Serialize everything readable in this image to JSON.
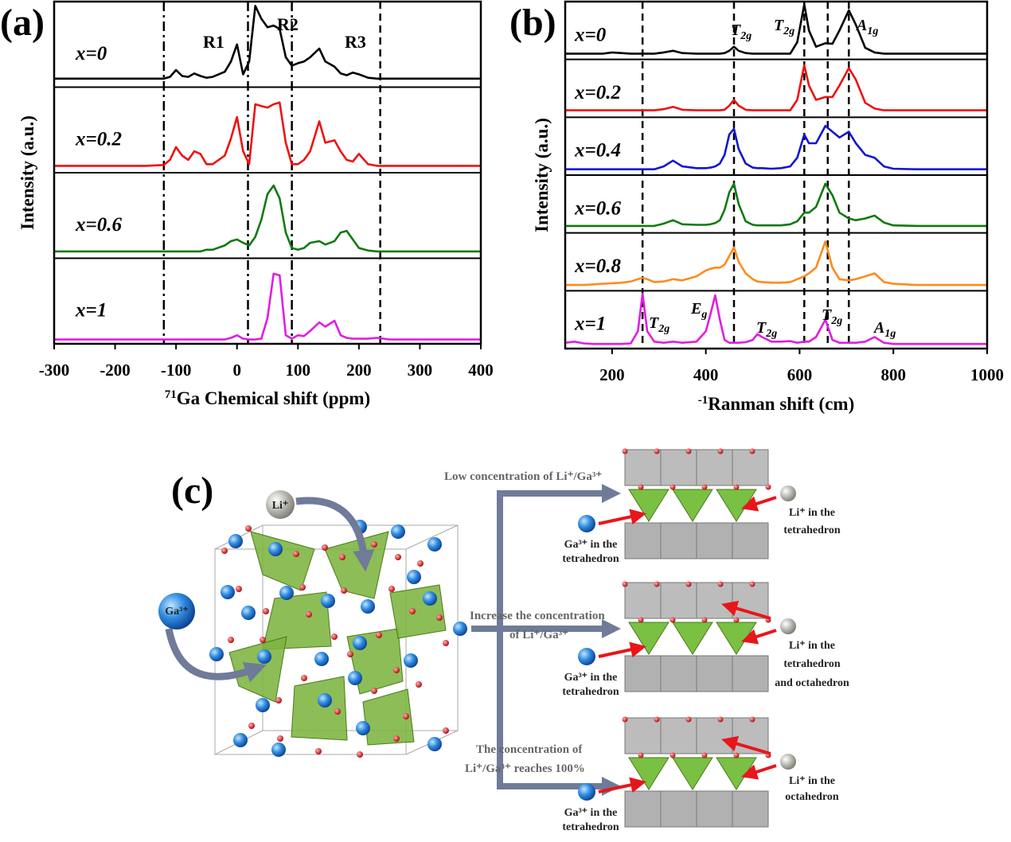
{
  "chart_data": [
    {
      "type": "line",
      "panel_label": "(a)",
      "ylabel": "Intensity (a.u.)",
      "xlabel": {
        "sup": "71",
        "text": "Ga Chemical shift (ppm)"
      },
      "xlim": [
        -300,
        400
      ],
      "xticks": [
        -300,
        -200,
        -100,
        0,
        100,
        200,
        300,
        400
      ],
      "ylim": [
        0,
        1
      ],
      "x": [
        -300,
        -250,
        -200,
        -150,
        -120,
        -110,
        -100,
        -90,
        -80,
        -70,
        -60,
        -50,
        -40,
        -20,
        -10,
        0,
        10,
        20,
        30,
        40,
        50,
        60,
        70,
        80,
        90,
        100,
        110,
        120,
        135,
        145,
        160,
        170,
        180,
        190,
        200,
        215,
        230,
        250,
        300,
        350,
        400
      ],
      "series": [
        {
          "name": "x=0",
          "color": "#000000",
          "values": [
            0.1,
            0.1,
            0.1,
            0.1,
            0.1,
            0.12,
            0.2,
            0.13,
            0.12,
            0.16,
            0.13,
            0.11,
            0.12,
            0.18,
            0.3,
            0.5,
            0.15,
            0.3,
            0.95,
            0.8,
            0.7,
            0.72,
            0.68,
            0.35,
            0.25,
            0.28,
            0.3,
            0.35,
            0.45,
            0.3,
            0.24,
            0.16,
            0.14,
            0.17,
            0.15,
            0.11,
            0.1,
            0.1,
            0.1,
            0.1,
            0.1
          ]
        },
        {
          "name": "x=0.2",
          "color": "#ee1111",
          "values": [
            0.08,
            0.08,
            0.08,
            0.08,
            0.09,
            0.15,
            0.3,
            0.2,
            0.15,
            0.25,
            0.22,
            0.1,
            0.1,
            0.2,
            0.4,
            0.65,
            0.25,
            0.1,
            0.8,
            0.78,
            0.76,
            0.8,
            0.82,
            0.35,
            0.1,
            0.1,
            0.15,
            0.25,
            0.6,
            0.35,
            0.38,
            0.25,
            0.15,
            0.13,
            0.22,
            0.1,
            0.08,
            0.08,
            0.08,
            0.08,
            0.08
          ]
        },
        {
          "name": "x=0.6",
          "color": "#0f7a0f",
          "values": [
            0.08,
            0.08,
            0.08,
            0.08,
            0.08,
            0.08,
            0.08,
            0.08,
            0.08,
            0.08,
            0.08,
            0.1,
            0.1,
            0.15,
            0.2,
            0.22,
            0.18,
            0.15,
            0.25,
            0.45,
            0.75,
            0.85,
            0.7,
            0.3,
            0.12,
            0.1,
            0.12,
            0.18,
            0.2,
            0.16,
            0.2,
            0.3,
            0.32,
            0.22,
            0.12,
            0.09,
            0.08,
            0.08,
            0.08,
            0.08,
            0.08
          ]
        },
        {
          "name": "x=1",
          "color": "#e01ee0",
          "values": [
            0.05,
            0.05,
            0.05,
            0.05,
            0.05,
            0.05,
            0.05,
            0.05,
            0.05,
            0.05,
            0.05,
            0.05,
            0.05,
            0.05,
            0.07,
            0.1,
            0.06,
            0.05,
            0.05,
            0.06,
            0.3,
            0.82,
            0.8,
            0.1,
            0.06,
            0.1,
            0.09,
            0.15,
            0.25,
            0.2,
            0.27,
            0.1,
            0.07,
            0.06,
            0.06,
            0.06,
            0.07,
            0.05,
            0.05,
            0.05,
            0.05
          ]
        }
      ],
      "vlines": [
        {
          "value": -120,
          "style": "dashdot"
        },
        {
          "value": 18,
          "style": "dashdot"
        },
        {
          "value": 90,
          "style": "dashdot"
        },
        {
          "value": 235,
          "style": "dash"
        }
      ],
      "annotations": [
        {
          "text": "R1"
        },
        {
          "text": "R2"
        },
        {
          "text": "R3"
        }
      ]
    },
    {
      "type": "line",
      "panel_label": "(b)",
      "ylabel": "Intensity (a.u.)",
      "xlabel": {
        "text": "Ranman shift (cm",
        "sup": "-1",
        "tail": ")"
      },
      "xlim": [
        100,
        1000
      ],
      "xticks": [
        200,
        400,
        600,
        800,
        1000
      ],
      "ylim": [
        0,
        1
      ],
      "x": [
        100,
        120,
        140,
        160,
        180,
        200,
        220,
        240,
        255,
        265,
        275,
        290,
        310,
        330,
        350,
        380,
        400,
        410,
        420,
        430,
        440,
        450,
        460,
        470,
        485,
        500,
        510,
        520,
        540,
        560,
        580,
        595,
        610,
        620,
        635,
        655,
        670,
        685,
        705,
        720,
        740,
        760,
        780,
        800,
        850,
        900,
        950,
        1000
      ],
      "series": [
        {
          "name": "x=0",
          "color": "#000000",
          "values": [
            0.1,
            0.1,
            0.1,
            0.1,
            0.1,
            0.12,
            0.11,
            0.1,
            0.1,
            0.1,
            0.1,
            0.1,
            0.12,
            0.15,
            0.11,
            0.1,
            0.1,
            0.1,
            0.1,
            0.1,
            0.11,
            0.15,
            0.22,
            0.15,
            0.11,
            0.1,
            0.1,
            0.1,
            0.1,
            0.1,
            0.1,
            0.3,
            0.95,
            0.5,
            0.22,
            0.28,
            0.27,
            0.5,
            0.85,
            0.6,
            0.2,
            0.12,
            0.1,
            0.1,
            0.1,
            0.1,
            0.1,
            0.1
          ]
        },
        {
          "name": "x=0.2",
          "color": "#ee1111",
          "values": [
            0.12,
            0.12,
            0.12,
            0.12,
            0.12,
            0.12,
            0.12,
            0.12,
            0.12,
            0.12,
            0.12,
            0.12,
            0.14,
            0.18,
            0.13,
            0.12,
            0.12,
            0.12,
            0.12,
            0.12,
            0.13,
            0.2,
            0.3,
            0.2,
            0.13,
            0.12,
            0.12,
            0.12,
            0.12,
            0.12,
            0.12,
            0.3,
            0.9,
            0.55,
            0.3,
            0.35,
            0.35,
            0.55,
            0.85,
            0.65,
            0.25,
            0.15,
            0.12,
            0.12,
            0.12,
            0.12,
            0.12,
            0.12
          ]
        },
        {
          "name": "x=0.4",
          "color": "#1515d0",
          "values": [
            0.1,
            0.1,
            0.1,
            0.1,
            0.1,
            0.1,
            0.1,
            0.1,
            0.1,
            0.1,
            0.1,
            0.1,
            0.15,
            0.25,
            0.15,
            0.12,
            0.12,
            0.13,
            0.15,
            0.2,
            0.35,
            0.7,
            0.8,
            0.45,
            0.2,
            0.13,
            0.12,
            0.12,
            0.11,
            0.12,
            0.15,
            0.3,
            0.7,
            0.55,
            0.55,
            0.85,
            0.75,
            0.65,
            0.75,
            0.55,
            0.35,
            0.3,
            0.15,
            0.11,
            0.1,
            0.1,
            0.1,
            0.1
          ]
        },
        {
          "name": "x=0.6",
          "color": "#0f7a0f",
          "values": [
            0.12,
            0.12,
            0.12,
            0.12,
            0.12,
            0.12,
            0.12,
            0.12,
            0.12,
            0.12,
            0.12,
            0.12,
            0.16,
            0.22,
            0.15,
            0.14,
            0.14,
            0.15,
            0.17,
            0.22,
            0.4,
            0.7,
            0.85,
            0.5,
            0.2,
            0.14,
            0.13,
            0.13,
            0.13,
            0.13,
            0.15,
            0.2,
            0.35,
            0.35,
            0.45,
            0.85,
            0.65,
            0.35,
            0.25,
            0.22,
            0.25,
            0.3,
            0.18,
            0.13,
            0.12,
            0.12,
            0.12,
            0.12
          ]
        },
        {
          "name": "x=0.8",
          "color": "#ff8a1c",
          "values": [
            0.1,
            0.1,
            0.1,
            0.11,
            0.12,
            0.13,
            0.14,
            0.16,
            0.2,
            0.22,
            0.2,
            0.15,
            0.16,
            0.2,
            0.18,
            0.25,
            0.35,
            0.38,
            0.4,
            0.4,
            0.45,
            0.6,
            0.75,
            0.5,
            0.3,
            0.2,
            0.16,
            0.15,
            0.14,
            0.14,
            0.15,
            0.2,
            0.25,
            0.3,
            0.4,
            0.85,
            0.4,
            0.2,
            0.18,
            0.2,
            0.25,
            0.3,
            0.15,
            0.12,
            0.1,
            0.1,
            0.1,
            0.1
          ]
        },
        {
          "name": "x=1",
          "color": "#e01ee0",
          "values": [
            0.1,
            0.12,
            0.09,
            0.08,
            0.08,
            0.08,
            0.08,
            0.09,
            0.3,
            0.95,
            0.3,
            0.12,
            0.1,
            0.12,
            0.1,
            0.12,
            0.3,
            0.6,
            0.92,
            0.5,
            0.15,
            0.1,
            0.1,
            0.1,
            0.11,
            0.15,
            0.25,
            0.2,
            0.12,
            0.12,
            0.13,
            0.1,
            0.12,
            0.12,
            0.2,
            0.5,
            0.15,
            0.1,
            0.1,
            0.1,
            0.12,
            0.2,
            0.1,
            0.08,
            0.08,
            0.08,
            0.08,
            0.08
          ]
        }
      ],
      "vlines": [
        {
          "value": 265,
          "style": "dash"
        },
        {
          "value": 460,
          "style": "dash"
        },
        {
          "value": 610,
          "style": "dash"
        },
        {
          "value": 660,
          "style": "dash"
        },
        {
          "value": 705,
          "style": "dash"
        }
      ],
      "annotations": [
        {
          "text": "T",
          "sub": "2g"
        },
        {
          "text": "T",
          "sub": "2g"
        },
        {
          "text": "A",
          "sub": "1g"
        },
        {
          "text": "T",
          "sub": "2g"
        },
        {
          "text": "E",
          "sub": "g"
        },
        {
          "text": "T",
          "sub": "2g"
        },
        {
          "text": "T",
          "sub": "2g"
        },
        {
          "text": "A",
          "sub": "1g"
        }
      ]
    }
  ],
  "diagram": {
    "panel_label": "(c)",
    "li": "Li⁺",
    "ga": "Ga³⁺",
    "steps": [
      {
        "lines": [
          "Low concentration of Li⁺/Ga³⁺"
        ],
        "ga_label": [
          "Ga³⁺ in the",
          "tetrahedron"
        ],
        "li_label": [
          "Li⁺ in the",
          "tetrahedron"
        ]
      },
      {
        "lines": [
          "Increase the concentration",
          "of Li⁺/Ga³⁺"
        ],
        "ga_label": [
          "Ga³⁺ in the",
          "tetrahedron"
        ],
        "li_label": [
          "Li⁺ in the",
          "tetrahedron",
          "and octahedron"
        ]
      },
      {
        "lines": [
          "The concentration of",
          "Li⁺/Ga³⁺  reaches 100%"
        ],
        "ga_label": [
          "Ga³⁺ in the",
          "tetrahedron"
        ],
        "li_label": [
          "Li⁺ in the",
          "octahedron"
        ]
      }
    ]
  }
}
